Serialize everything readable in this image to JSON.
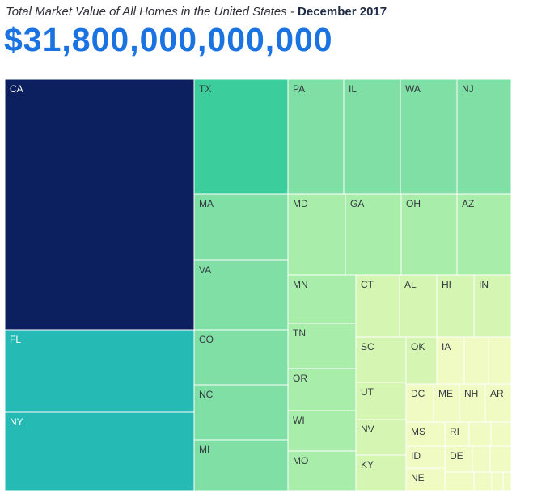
{
  "header": {
    "subtitle_italic": "Total Market Value of All Homes in the United States",
    "subtitle_sep": " - ",
    "subtitle_date": "December 2017",
    "total": "$31,800,000,000,000"
  },
  "colors": {
    "darkest": "#0c1f5e",
    "teal": "#25bab4",
    "mid": "#3ccd9c",
    "green": "#7fdfa5",
    "light": "#a8edaa",
    "pale": "#d5f5b3",
    "palest": "#effbc2",
    "border": "#ffffff"
  },
  "chart_data": {
    "type": "treemap",
    "title": "Total Market Value of All Homes in the United States - December 2017",
    "total_value": "$31,800,000,000,000",
    "unit": "relative area (share of total)",
    "tiles": [
      {
        "label": "CA",
        "value": 26.8,
        "shade": "darkest"
      },
      {
        "label": "FL",
        "value": 8.2,
        "shade": "teal"
      },
      {
        "label": "NY",
        "value": 8.1,
        "shade": "teal"
      },
      {
        "label": "TX",
        "value": 5.8,
        "shade": "mid"
      },
      {
        "label": "MA",
        "value": 3.3,
        "shade": "green"
      },
      {
        "label": "VA",
        "value": 3.3,
        "shade": "green"
      },
      {
        "label": "CO",
        "value": 2.7,
        "shade": "green"
      },
      {
        "label": "NC",
        "value": 2.7,
        "shade": "green"
      },
      {
        "label": "MI",
        "value": 2.5,
        "shade": "green"
      },
      {
        "label": "PA",
        "value": 2.6,
        "shade": "green"
      },
      {
        "label": "IL",
        "value": 2.7,
        "shade": "green"
      },
      {
        "label": "WA",
        "value": 2.6,
        "shade": "green"
      },
      {
        "label": "NJ",
        "value": 2.6,
        "shade": "green"
      },
      {
        "label": "MD",
        "value": 2.0,
        "shade": "light"
      },
      {
        "label": "GA",
        "value": 1.9,
        "shade": "light"
      },
      {
        "label": "OH",
        "value": 1.9,
        "shade": "light"
      },
      {
        "label": "AZ",
        "value": 1.9,
        "shade": "light"
      },
      {
        "label": "MN",
        "value": 1.4,
        "shade": "light"
      },
      {
        "label": "TN",
        "value": 1.2,
        "shade": "light"
      },
      {
        "label": "OR",
        "value": 1.2,
        "shade": "light"
      },
      {
        "label": "WI",
        "value": 1.1,
        "shade": "light"
      },
      {
        "label": "MO",
        "value": 1.2,
        "shade": "light"
      },
      {
        "label": "CT",
        "value": 1.0,
        "shade": "pale"
      },
      {
        "label": "AL",
        "value": 0.8,
        "shade": "pale"
      },
      {
        "label": "HI",
        "value": 0.8,
        "shade": "pale"
      },
      {
        "label": "IN",
        "value": 0.8,
        "shade": "pale"
      },
      {
        "label": "SC",
        "value": 0.9,
        "shade": "pale"
      },
      {
        "label": "UT",
        "value": 0.8,
        "shade": "pale"
      },
      {
        "label": "NV",
        "value": 0.8,
        "shade": "pale"
      },
      {
        "label": "KY",
        "value": 0.6,
        "shade": "pale"
      },
      {
        "label": "OK",
        "value": 0.4,
        "shade": "pale"
      },
      {
        "label": "IA",
        "value": 0.4,
        "shade": "palest"
      },
      {
        "label": "DC",
        "value": 0.4,
        "shade": "palest"
      },
      {
        "label": "ME",
        "value": 0.3,
        "shade": "palest"
      },
      {
        "label": "NH",
        "value": 0.3,
        "shade": "palest"
      },
      {
        "label": "AR",
        "value": 0.3,
        "shade": "palest"
      },
      {
        "label": "MS",
        "value": 0.3,
        "shade": "palest"
      },
      {
        "label": "RI",
        "value": 0.2,
        "shade": "palest"
      },
      {
        "label": "ID",
        "value": 0.2,
        "shade": "palest"
      },
      {
        "label": "DE",
        "value": 0.2,
        "shade": "palest"
      },
      {
        "label": "NE",
        "value": 0.2,
        "shade": "palest"
      }
    ]
  }
}
